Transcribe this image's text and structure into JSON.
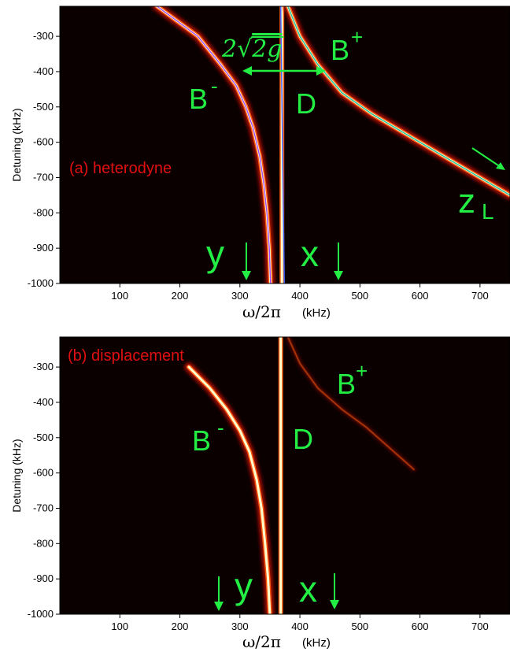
{
  "colors": {
    "background": "#0a0000",
    "branch_core": "#ffffcc",
    "branch_glow": "#cc1100",
    "annotation": "#22ee44",
    "title": "#e01010",
    "overlay_purple": "#a040ff",
    "overlay_blue": "#4060ff",
    "overlay_green": "#30c0a0"
  },
  "chart_data": [
    {
      "type": "heatmap",
      "panel": "a",
      "title": "(a) heterodyne",
      "xlabel": "ω/2π",
      "xunit": "(kHz)",
      "ylabel": "Detuning (kHz)",
      "xlim": [
        0,
        750
      ],
      "ylim": [
        -1000,
        -215
      ],
      "xticks": [
        100,
        200,
        300,
        400,
        500,
        600,
        700
      ],
      "yticks": [
        -300,
        -400,
        -500,
        -600,
        -700,
        -800,
        -900,
        -1000
      ],
      "branches": [
        {
          "name": "B-",
          "x": [
            162,
            230,
            268,
            294,
            310,
            322,
            333,
            340,
            345,
            349,
            351
          ],
          "y": [
            -215,
            -300,
            -380,
            -440,
            -500,
            -560,
            -640,
            -720,
            -800,
            -900,
            -1000
          ]
        },
        {
          "name": "D",
          "x": [
            370,
            370
          ],
          "y": [
            -215,
            -1000
          ]
        },
        {
          "name": "B+",
          "x": [
            380,
            400,
            430,
            470,
            520,
            580,
            650,
            750
          ],
          "y": [
            -215,
            -300,
            -380,
            -460,
            -520,
            -580,
            -650,
            -750
          ]
        }
      ],
      "annotations": {
        "splitting": "2√2g",
        "b_minus_base": "B",
        "b_minus_sup": "-",
        "b_plus_base": "B",
        "b_plus_sup": "+",
        "d_label": "D",
        "zl_base": "z",
        "zl_sub": "L",
        "y_label": "y",
        "x_label": "x"
      }
    },
    {
      "type": "heatmap",
      "panel": "b",
      "title": "(b) displacement",
      "xlabel": "ω/2π",
      "xunit": "(kHz)",
      "ylabel": "Detuning (kHz)",
      "xlim": [
        0,
        750
      ],
      "ylim": [
        -1000,
        -215
      ],
      "xticks": [
        100,
        200,
        300,
        400,
        500,
        600,
        700
      ],
      "yticks": [
        -300,
        -400,
        -500,
        -600,
        -700,
        -800,
        -900,
        -1000
      ],
      "branches": [
        {
          "name": "B-",
          "x": [
            215,
            250,
            278,
            300,
            316,
            328,
            336,
            342,
            347,
            350
          ],
          "y": [
            -300,
            -360,
            -420,
            -480,
            -540,
            -620,
            -700,
            -800,
            -900,
            -1000
          ]
        },
        {
          "name": "D",
          "x": [
            368,
            368
          ],
          "y": [
            -215,
            -1000
          ]
        },
        {
          "name": "B+",
          "x": [
            380,
            400,
            430,
            470,
            510,
            550,
            590
          ],
          "y": [
            -215,
            -290,
            -360,
            -420,
            -470,
            -530,
            -590
          ]
        }
      ],
      "annotations": {
        "b_minus_base": "B",
        "b_minus_sup": "-",
        "b_plus_base": "B",
        "b_plus_sup": "+",
        "d_label": "D",
        "y_label": "y",
        "x_label": "x"
      }
    }
  ]
}
